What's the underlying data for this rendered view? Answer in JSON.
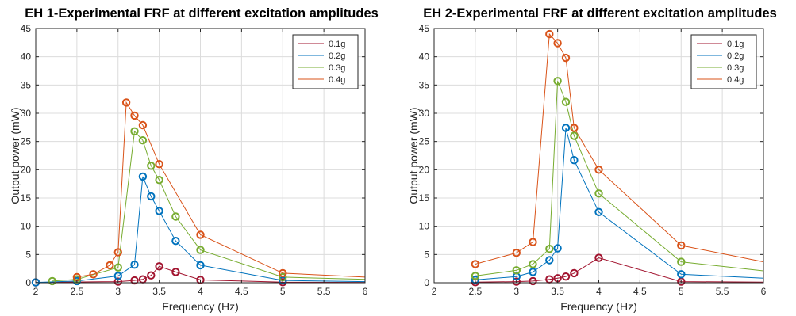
{
  "chart_data": [
    {
      "type": "line",
      "title": "EH 1-Experimental FRF at different excitation amplitudes",
      "xlabel": "Frequency (Hz)",
      "ylabel": "Output power (mW)",
      "xlim": [
        2,
        6
      ],
      "ylim": [
        0,
        45
      ],
      "xticks": [
        2,
        2.5,
        3,
        3.5,
        4,
        4.5,
        5,
        5.5,
        6
      ],
      "xtick_labels": [
        "2",
        "2.5",
        "3",
        "3.5",
        "4",
        "4.5",
        "5",
        "5.5",
        "6"
      ],
      "yticks": [
        0,
        5,
        10,
        15,
        20,
        25,
        30,
        35,
        40,
        45
      ],
      "ytick_labels": [
        "0",
        "5",
        "10",
        "15",
        "20",
        "25",
        "30",
        "35",
        "40",
        "45"
      ],
      "grid": true,
      "legend_position": "top-right",
      "series": [
        {
          "name": "0.1g",
          "color": "#a2142f",
          "x": [
            2,
            3,
            3.2,
            3.3,
            3.4,
            3.5,
            3.7,
            4,
            5,
            6
          ],
          "y": [
            0.05,
            0.2,
            0.4,
            0.6,
            1.3,
            2.9,
            1.9,
            0.5,
            0.1,
            0.05
          ],
          "markers": [
            true,
            true,
            true,
            true,
            true,
            true,
            true,
            true,
            true,
            false
          ]
        },
        {
          "name": "0.2g",
          "color": "#0072bd",
          "x": [
            2,
            2.5,
            3,
            3.2,
            3.3,
            3.4,
            3.5,
            3.7,
            4,
            5,
            6
          ],
          "y": [
            0.05,
            0.3,
            1.2,
            3.2,
            18.8,
            15.3,
            12.7,
            7.4,
            3.1,
            0.4,
            0.2
          ],
          "markers": [
            true,
            true,
            true,
            true,
            true,
            true,
            true,
            true,
            true,
            true,
            false
          ]
        },
        {
          "name": "0.3g",
          "color": "#77ac30",
          "x": [
            2.2,
            2.5,
            3,
            3.2,
            3.3,
            3.4,
            3.5,
            3.7,
            4,
            5,
            6
          ],
          "y": [
            0.3,
            0.6,
            2.7,
            26.8,
            25.2,
            20.7,
            18.2,
            11.7,
            5.8,
            1.0,
            0.6
          ],
          "markers": [
            true,
            true,
            true,
            true,
            true,
            true,
            true,
            true,
            true,
            true,
            false
          ]
        },
        {
          "name": "0.4g",
          "color": "#d95319",
          "x": [
            2.5,
            2.7,
            2.9,
            3,
            3.1,
            3.2,
            3.3,
            3.5,
            4,
            5,
            6
          ],
          "y": [
            1.0,
            1.5,
            3.1,
            5.4,
            31.9,
            29.6,
            27.9,
            21.0,
            8.5,
            1.7,
            1.0
          ],
          "markers": [
            true,
            true,
            true,
            true,
            true,
            true,
            true,
            true,
            true,
            true,
            false
          ]
        }
      ]
    },
    {
      "type": "line",
      "title": "EH 2-Experimental FRF at different excitation amplitudes",
      "xlabel": "Frequency (Hz)",
      "ylabel": "Output power (mW)",
      "xlim": [
        2,
        6
      ],
      "ylim": [
        0,
        45
      ],
      "xticks": [
        2,
        2.5,
        3,
        3.5,
        4,
        4.5,
        5,
        5.5,
        6
      ],
      "xtick_labels": [
        "2",
        "2.5",
        "3",
        "3.5",
        "4",
        "4.5",
        "5",
        "5.5",
        "6"
      ],
      "yticks": [
        0,
        5,
        10,
        15,
        20,
        25,
        30,
        35,
        40,
        45
      ],
      "ytick_labels": [
        "0",
        "5",
        "10",
        "15",
        "20",
        "25",
        "30",
        "35",
        "40",
        "45"
      ],
      "grid": true,
      "legend_position": "top-right",
      "series": [
        {
          "name": "0.1g",
          "color": "#a2142f",
          "x": [
            2.5,
            3,
            3.2,
            3.4,
            3.5,
            3.6,
            3.7,
            4,
            5,
            6
          ],
          "y": [
            0.1,
            0.2,
            0.3,
            0.6,
            0.8,
            1.1,
            1.7,
            4.4,
            0.2,
            0.1
          ],
          "markers": [
            true,
            true,
            true,
            true,
            true,
            true,
            true,
            true,
            true,
            false
          ]
        },
        {
          "name": "0.2g",
          "color": "#0072bd",
          "x": [
            2.5,
            3,
            3.2,
            3.4,
            3.5,
            3.6,
            3.7,
            4,
            5,
            6
          ],
          "y": [
            0.5,
            1.1,
            1.9,
            4.0,
            6.1,
            27.4,
            21.7,
            12.5,
            1.5,
            0.8
          ],
          "markers": [
            true,
            true,
            true,
            true,
            true,
            true,
            true,
            true,
            true,
            false
          ]
        },
        {
          "name": "0.3g",
          "color": "#77ac30",
          "x": [
            2.5,
            3,
            3.2,
            3.4,
            3.5,
            3.6,
            3.7,
            4,
            5,
            6
          ],
          "y": [
            1.2,
            2.2,
            3.3,
            6.0,
            35.7,
            32.0,
            26.0,
            15.8,
            3.7,
            2.1
          ],
          "markers": [
            true,
            true,
            true,
            true,
            true,
            true,
            true,
            true,
            true,
            false
          ]
        },
        {
          "name": "0.4g",
          "color": "#d95319",
          "x": [
            2.5,
            3,
            3.2,
            3.4,
            3.5,
            3.6,
            3.7,
            4,
            5,
            6
          ],
          "y": [
            3.3,
            5.3,
            7.2,
            44.0,
            42.4,
            39.8,
            27.4,
            20.0,
            6.6,
            3.7
          ],
          "markers": [
            true,
            true,
            true,
            true,
            true,
            true,
            true,
            true,
            true,
            false
          ]
        }
      ]
    }
  ]
}
